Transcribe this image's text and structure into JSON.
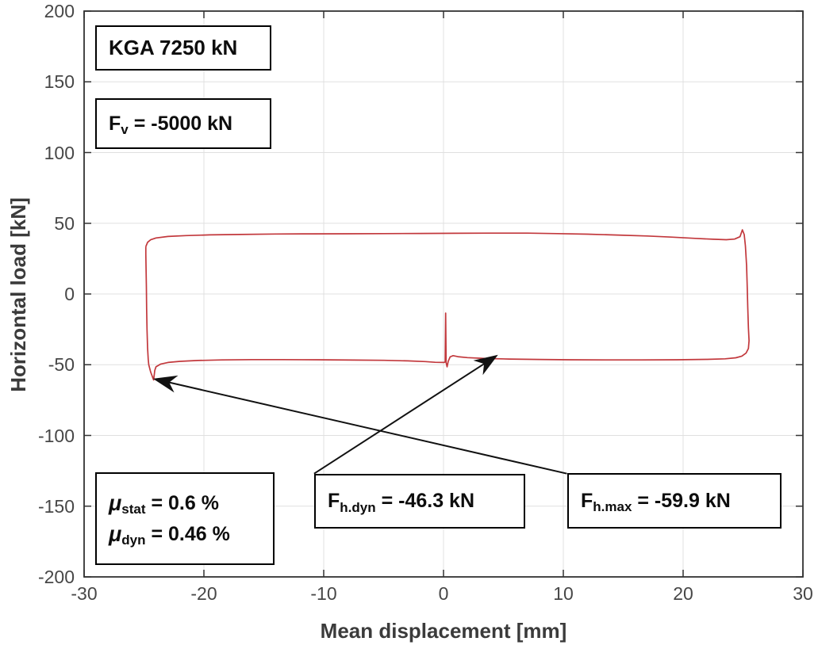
{
  "chart_data": {
    "type": "line",
    "title": "",
    "xlabel": "Mean displacement [mm]",
    "ylabel": "Horizontal load [kN]",
    "xlim": [
      -30,
      30
    ],
    "ylim": [
      -200,
      200
    ],
    "xticks": [
      -30,
      -20,
      -10,
      0,
      10,
      20,
      30
    ],
    "yticks": [
      -200,
      -150,
      -100,
      -50,
      0,
      50,
      100,
      150,
      200
    ],
    "grid": true,
    "legend": "none",
    "colors": {
      "curve": "#c2383c",
      "grid": "#e0e0e0",
      "axis": "#333333",
      "tick_label": "#474747",
      "annotation": "#0d0d0d"
    },
    "series": [
      {
        "name": "hysteresis-loop",
        "color": "#c2383c",
        "points": [
          [
            -24.85,
            33.5
          ],
          [
            -24.7,
            36.5
          ],
          [
            -24.45,
            38.3
          ],
          [
            -24.0,
            39.6
          ],
          [
            -23.0,
            40.7
          ],
          [
            -21.5,
            41.3
          ],
          [
            -19.5,
            41.8
          ],
          [
            -17.0,
            42.1
          ],
          [
            -14.0,
            42.4
          ],
          [
            -11.0,
            42.5
          ],
          [
            -8.0,
            42.6
          ],
          [
            -5.0,
            42.7
          ],
          [
            -2.0,
            42.8
          ],
          [
            1.0,
            42.9
          ],
          [
            4.0,
            43.0
          ],
          [
            7.0,
            43.0
          ],
          [
            9.5,
            42.7
          ],
          [
            12.0,
            42.3
          ],
          [
            14.5,
            41.7
          ],
          [
            17.0,
            41.0
          ],
          [
            19.0,
            40.2
          ],
          [
            21.0,
            39.3
          ],
          [
            22.5,
            38.7
          ],
          [
            23.6,
            38.4
          ],
          [
            24.3,
            38.8
          ],
          [
            24.75,
            40.5
          ],
          [
            24.95,
            45.4
          ],
          [
            25.1,
            42.0
          ],
          [
            25.2,
            34.0
          ],
          [
            25.3,
            20.0
          ],
          [
            25.35,
            5.0
          ],
          [
            25.4,
            -10.0
          ],
          [
            25.45,
            -24.0
          ],
          [
            25.5,
            -33.0
          ],
          [
            25.45,
            -38.5
          ],
          [
            25.25,
            -41.8
          ],
          [
            24.9,
            -43.9
          ],
          [
            24.4,
            -45.1
          ],
          [
            23.5,
            -45.8
          ],
          [
            22.0,
            -46.2
          ],
          [
            19.5,
            -46.5
          ],
          [
            16.5,
            -46.6
          ],
          [
            13.5,
            -46.6
          ],
          [
            10.5,
            -46.5
          ],
          [
            8.0,
            -46.3
          ],
          [
            5.5,
            -46.0
          ],
          [
            3.5,
            -45.6
          ],
          [
            2.0,
            -45.0
          ],
          [
            1.2,
            -44.3
          ],
          [
            0.8,
            -43.6
          ],
          [
            0.55,
            -44.5
          ],
          [
            0.4,
            -47.5
          ],
          [
            0.3,
            -51.5
          ],
          [
            0.22,
            -48.5
          ],
          [
            0.18,
            -13.5
          ],
          [
            0.14,
            -48.0
          ],
          [
            0.05,
            -48.4
          ],
          [
            -0.7,
            -48.3
          ],
          [
            -1.5,
            -47.8
          ],
          [
            -3.0,
            -47.3
          ],
          [
            -5.0,
            -46.9
          ],
          [
            -7.5,
            -46.7
          ],
          [
            -10.5,
            -46.5
          ],
          [
            -13.5,
            -46.4
          ],
          [
            -16.0,
            -46.4
          ],
          [
            -18.5,
            -46.6
          ],
          [
            -20.5,
            -47.0
          ],
          [
            -22.0,
            -47.6
          ],
          [
            -23.0,
            -48.4
          ],
          [
            -23.6,
            -49.5
          ],
          [
            -24.0,
            -51.5
          ],
          [
            -24.1,
            -54.0
          ],
          [
            -24.2,
            -60.8
          ],
          [
            -24.45,
            -55.0
          ],
          [
            -24.6,
            -50.0
          ],
          [
            -24.65,
            -46.0
          ],
          [
            -24.7,
            -38.0
          ],
          [
            -24.75,
            -25.0
          ],
          [
            -24.78,
            -10.0
          ],
          [
            -24.8,
            5.0
          ],
          [
            -24.83,
            18.0
          ],
          [
            -24.85,
            28.0
          ],
          [
            -24.85,
            33.5
          ]
        ]
      }
    ],
    "annotations": {
      "kga": {
        "text": "KGA 7250 kN"
      },
      "fv": {
        "pre": "F",
        "sub": "v",
        "post": " = -5000 kN"
      },
      "mu_stat": {
        "pre": "μ",
        "sub": "stat",
        "post": " = 0.6 %"
      },
      "mu_dyn": {
        "pre": "μ",
        "sub": "dyn",
        "post": " = 0.46 %"
      },
      "fhdyn": {
        "pre": "F",
        "sub": "h.dyn",
        "post": " = -46.3 kN"
      },
      "fhmax": {
        "pre": "F",
        "sub": "h.max",
        "post": " = -59.9 kN"
      },
      "arrows": [
        {
          "name": "arrow-to-fhmax-point",
          "from": [
            10.3,
            -127.0
          ],
          "to": [
            -24.25,
            -59.9
          ]
        },
        {
          "name": "arrow-to-fhdyn-point",
          "from": [
            -10.8,
            -127.0
          ],
          "to": [
            4.55,
            -43.0
          ]
        }
      ]
    }
  }
}
